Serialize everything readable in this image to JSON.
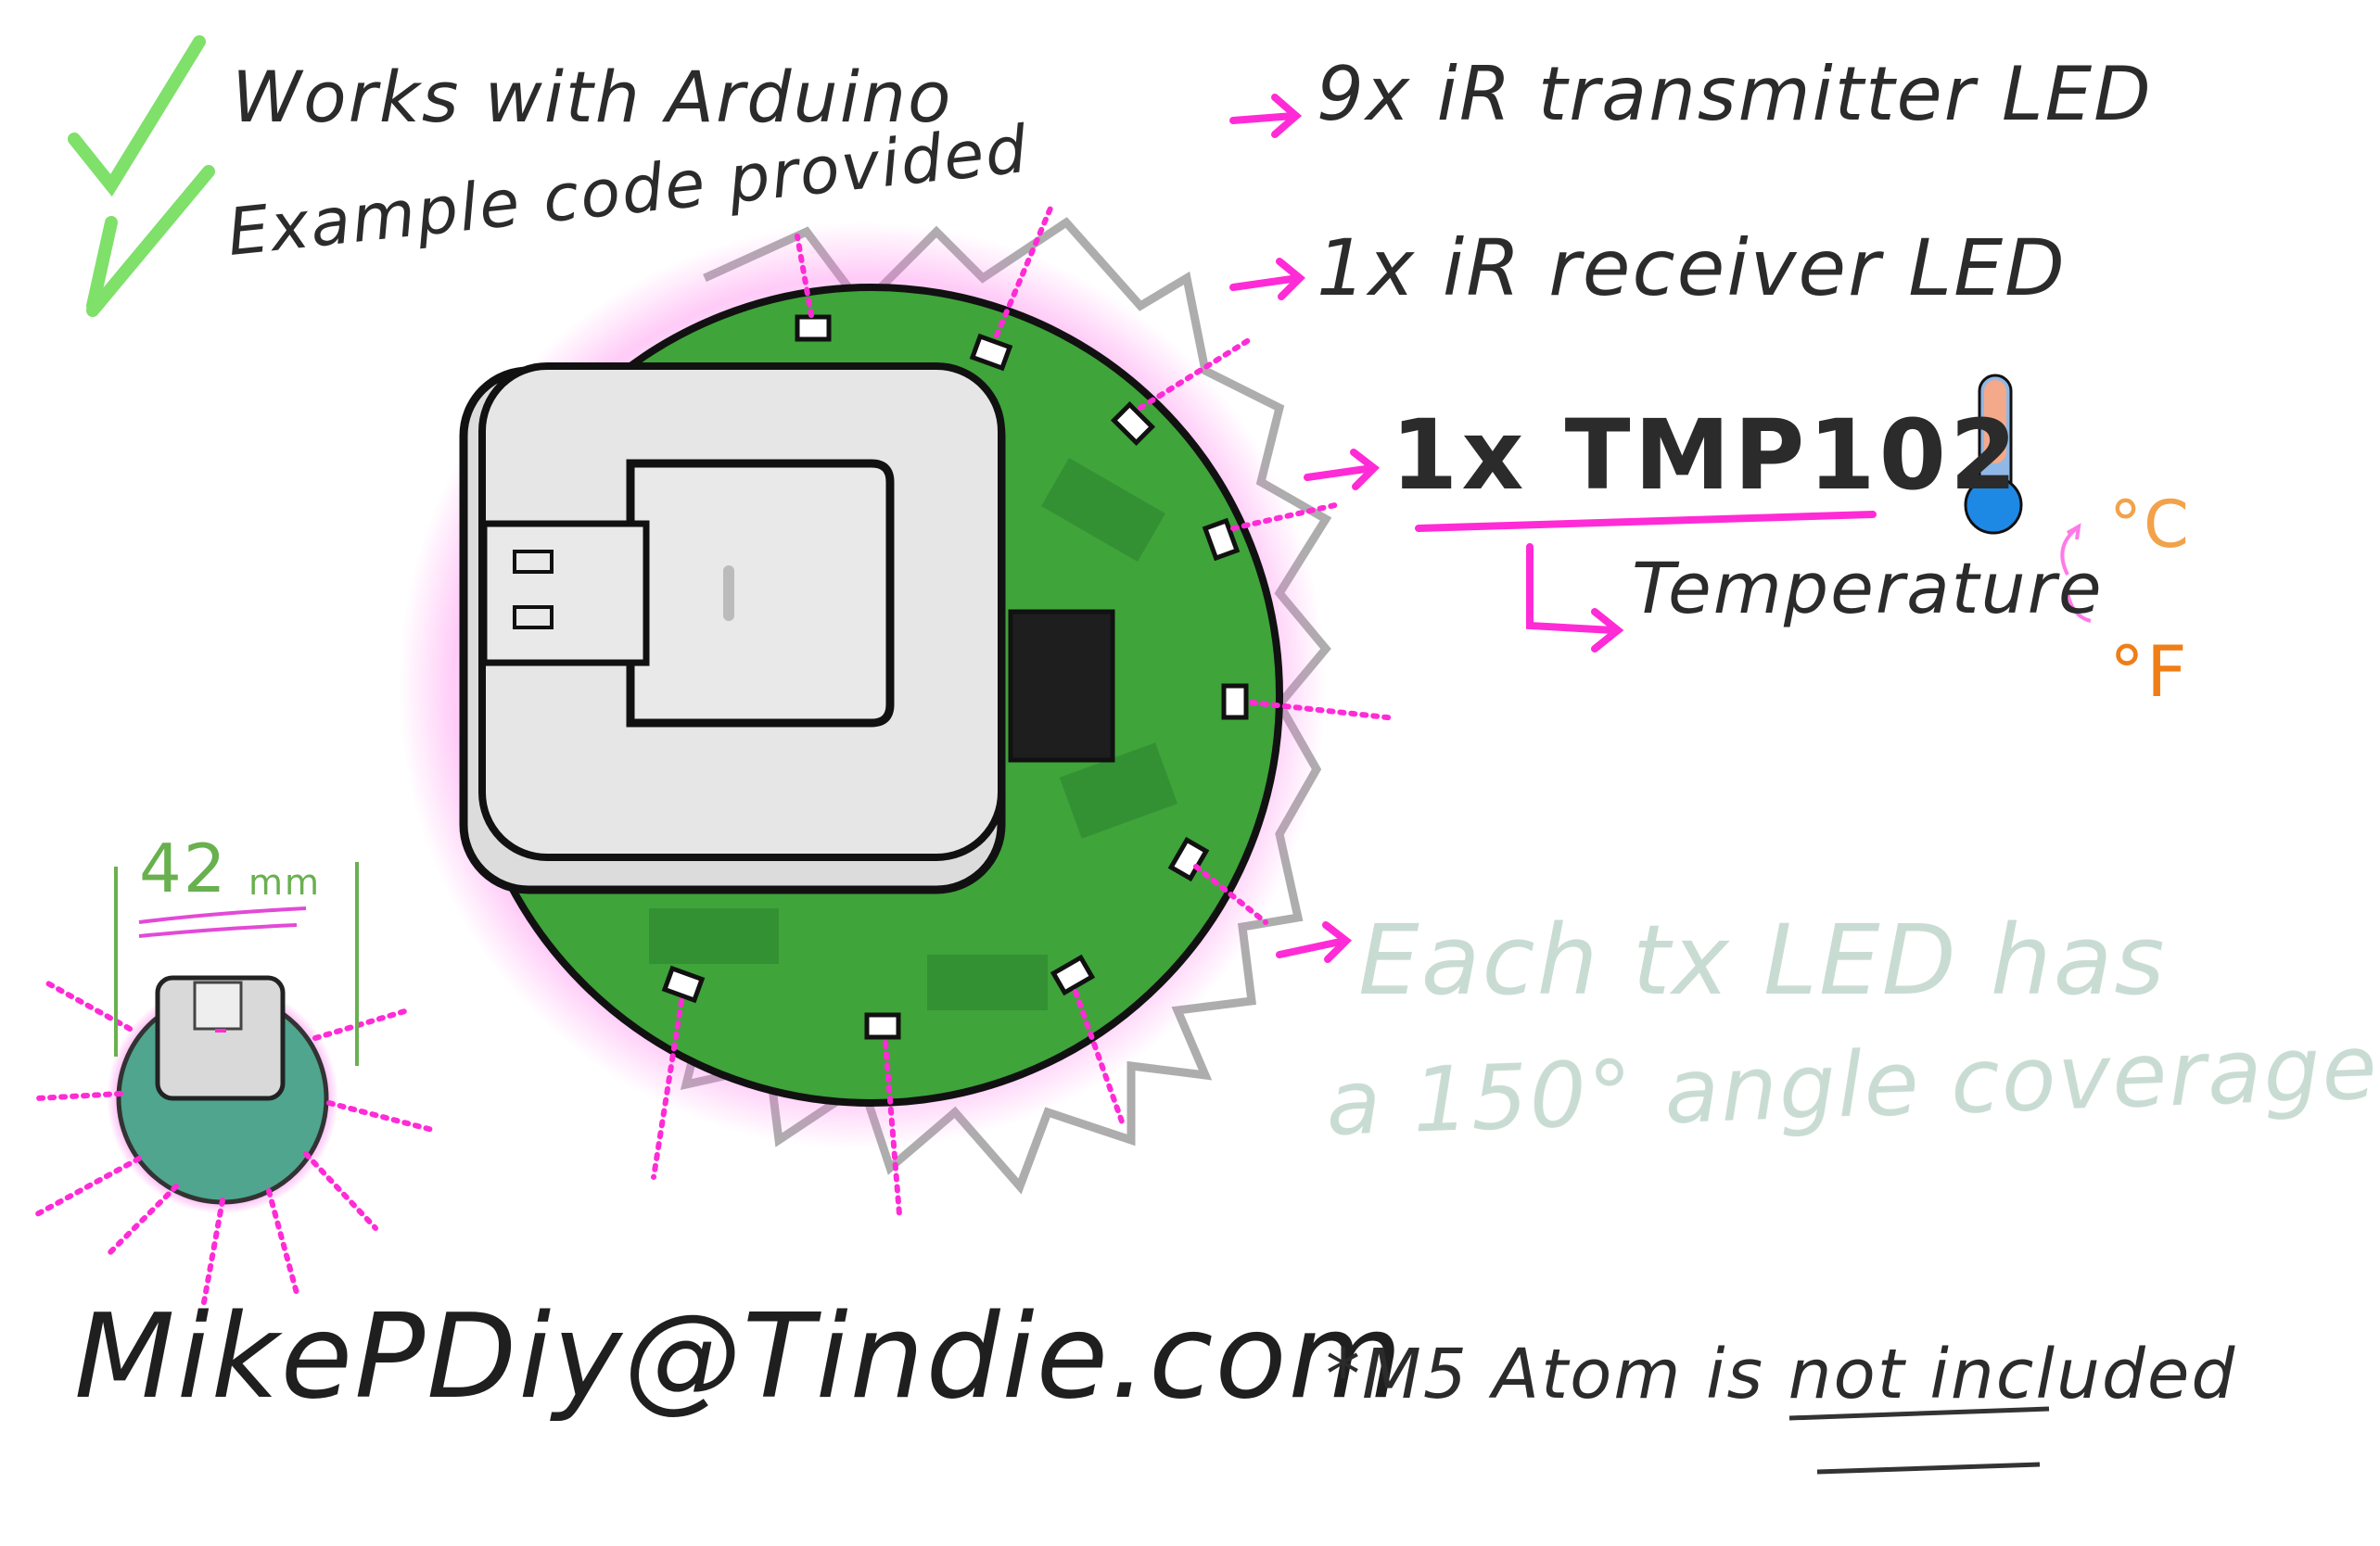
{
  "features": {
    "arduino": "Works with Arduino",
    "example_code": "Example code provided",
    "check_color": "#7fe06a"
  },
  "specs": {
    "transmitter": "9x iR transmitter LED",
    "receiver": "1x iR receiver LED",
    "sensor": "1x TMP102",
    "sensor_measures": "Temperature",
    "unit_c": "°C",
    "unit_f": "°F",
    "arrow_color": "#ff2bd6"
  },
  "coverage_note": {
    "line1": "Each tx LED has",
    "line2": "a 150° angle coverage"
  },
  "dimension": {
    "value": "42",
    "unit": "mm"
  },
  "footer": {
    "shop": "MikePDiy@Tindie.com",
    "disclaimer": "*M5 Atom is not included"
  },
  "colors": {
    "pcb_green": "#3fa43a",
    "pcb_dark": "#2f8a31",
    "led_glow": "#ff3fe0",
    "module_grey": "#e6e6e6"
  },
  "icons": {
    "thermometer": "thermometer-icon",
    "checkmark": "check-icon"
  }
}
